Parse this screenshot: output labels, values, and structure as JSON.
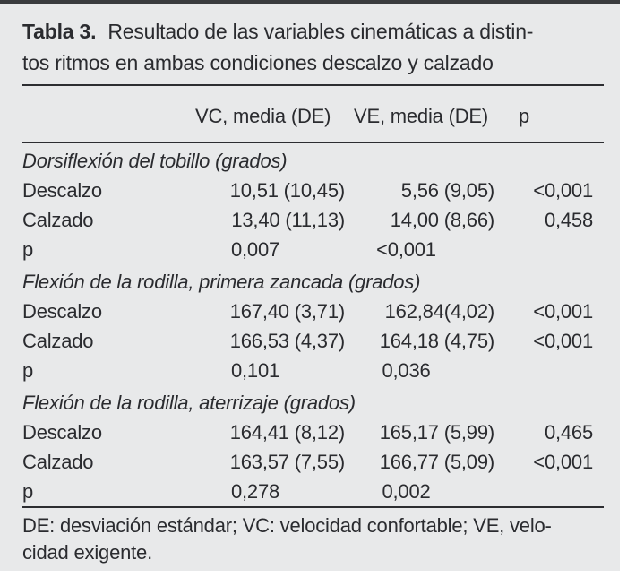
{
  "colors": {
    "panel_background": "#e8e9ea",
    "text": "#2a2b2f",
    "rule": "#2c2d31",
    "top_bar": "#3a3b3e"
  },
  "title": {
    "label": "Tabla 3.",
    "line1": "Resultado de las variables cinemáticas a distin-",
    "line2": "tos ritmos en ambas condiciones descalzo y calzado"
  },
  "table": {
    "col_headers": {
      "vc": "VC, media (DE)",
      "ve": "VE, media (DE)",
      "p": "p"
    },
    "sections": [
      {
        "header": "Dorsiflexión del tobillo (grados)",
        "rows": [
          {
            "label": "Descalzo",
            "vc": "10,51 (10,45)",
            "ve": "5,56 (9,05)",
            "p": "<0,001"
          },
          {
            "label": "Calzado",
            "vc": "13,40 (11,13)",
            "ve": "14,00 (8,66)",
            "p": "0,458"
          },
          {
            "label": "p",
            "vc": "0,007",
            "ve": "<0,001",
            "p": ""
          }
        ]
      },
      {
        "header": "Flexión de la rodilla, primera zancada (grados)",
        "rows": [
          {
            "label": "Descalzo",
            "vc": "167,40 (3,71)",
            "ve": "162,84(4,02)",
            "p": "<0,001"
          },
          {
            "label": "Calzado",
            "vc": "166,53 (4,37)",
            "ve": "164,18 (4,75)",
            "p": "<0,001"
          },
          {
            "label": "p",
            "vc": "0,101",
            "ve": "0,036",
            "p": ""
          }
        ]
      },
      {
        "header": "Flexión de la rodilla, aterrizaje (grados)",
        "rows": [
          {
            "label": "Descalzo",
            "vc": "164,41 (8,12)",
            "ve": "165,17 (5,99)",
            "p": "0,465"
          },
          {
            "label": "Calzado",
            "vc": "163,57 (7,55)",
            "ve": "166,77 (5,09)",
            "p": "<0,001"
          },
          {
            "label": "p",
            "vc": "0,278",
            "ve": "0,002",
            "p": ""
          }
        ]
      }
    ]
  },
  "footnote": {
    "line1": "DE: desviación estándar; VC: velocidad confortable; VE, velo-",
    "line2": "cidad exigente."
  }
}
